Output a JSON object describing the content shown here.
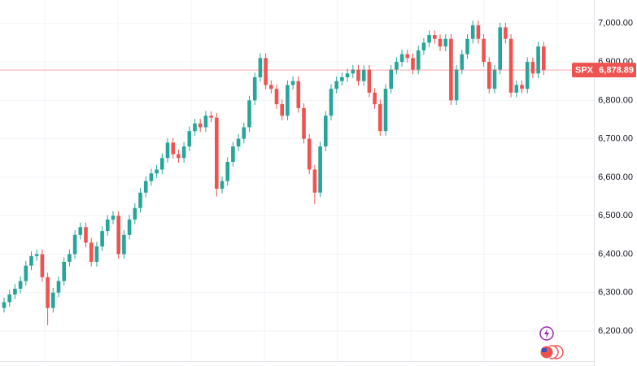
{
  "chart_data": {
    "type": "candlestick",
    "symbol": "SPX",
    "last_price": {
      "value": 6878.89,
      "label": "6,878.89"
    },
    "up_color": "#26a69a",
    "down_color": "#ef5350",
    "grid": true,
    "ylim": [
      6109,
      7061
    ],
    "yticks": [
      {
        "value": 6200,
        "label": "6,200.00"
      },
      {
        "value": 6300,
        "label": "6,300.00"
      },
      {
        "value": 6400,
        "label": "6,400.00"
      },
      {
        "value": 6500,
        "label": "6,500.00"
      },
      {
        "value": 6600,
        "label": "6,600.00"
      },
      {
        "value": 6700,
        "label": "6,700.00"
      },
      {
        "value": 6800,
        "label": "6,800.00"
      },
      {
        "value": 6900,
        "label": "6,900.00"
      },
      {
        "value": 7000,
        "label": "7,000.00"
      }
    ],
    "open": [
      6260,
      6275,
      6295,
      6310,
      6330,
      6370,
      6395,
      6400,
      6340,
      6260,
      6300,
      6330,
      6380,
      6400,
      6450,
      6470,
      6430,
      6380,
      6420,
      6460,
      6490,
      6500,
      6400,
      6450,
      6490,
      6520,
      6560,
      6590,
      6610,
      6620,
      6650,
      6690,
      6660,
      6650,
      6680,
      6720,
      6740,
      6730,
      6760,
      6755,
      6570,
      6590,
      6640,
      6680,
      6700,
      6730,
      6800,
      6860,
      6910,
      6840,
      6830,
      6790,
      6760,
      6840,
      6850,
      6780,
      6700,
      6620,
      6560,
      6680,
      6760,
      6830,
      6850,
      6860,
      6870,
      6880,
      6850,
      6880,
      6820,
      6790,
      6720,
      6830,
      6880,
      6900,
      6920,
      6910,
      6880,
      6930,
      6950,
      6970,
      6960,
      6940,
      6960,
      6800,
      6880,
      6920,
      6960,
      6995,
      6960,
      6900,
      6830,
      6880,
      6990,
      6960,
      6820,
      6840,
      6830,
      6900,
      6870,
      6940
    ],
    "high": [
      6287,
      6307,
      6322,
      6342,
      6382,
      6407,
      6412,
      6412,
      6352,
      6312,
      6342,
      6392,
      6412,
      6462,
      6482,
      6482,
      6442,
      6432,
      6472,
      6502,
      6512,
      6512,
      6462,
      6502,
      6532,
      6572,
      6602,
      6622,
      6632,
      6662,
      6702,
      6702,
      6672,
      6692,
      6732,
      6752,
      6752,
      6772,
      6772,
      6767,
      6602,
      6652,
      6692,
      6712,
      6742,
      6812,
      6872,
      6922,
      6922,
      6852,
      6842,
      6802,
      6852,
      6862,
      6862,
      6792,
      6712,
      6632,
      6692,
      6772,
      6842,
      6862,
      6872,
      6882,
      6892,
      6892,
      6892,
      6892,
      6832,
      6802,
      6842,
      6892,
      6912,
      6932,
      6932,
      6922,
      6942,
      6962,
      6982,
      6982,
      6972,
      6972,
      6972,
      6892,
      6932,
      6972,
      7007,
      7007,
      6972,
      6912,
      6892,
      7002,
      7002,
      6972,
      6852,
      6852,
      6912,
      6912,
      6952,
      6952
    ],
    "low": [
      6248,
      6263,
      6283,
      6298,
      6318,
      6358,
      6383,
      6328,
      6215,
      6248,
      6288,
      6318,
      6368,
      6388,
      6438,
      6418,
      6368,
      6368,
      6408,
      6448,
      6478,
      6388,
      6388,
      6438,
      6478,
      6508,
      6548,
      6578,
      6598,
      6608,
      6638,
      6648,
      6638,
      6638,
      6668,
      6708,
      6718,
      6718,
      6743,
      6550,
      6558,
      6578,
      6628,
      6668,
      6688,
      6718,
      6788,
      6848,
      6828,
      6818,
      6778,
      6748,
      6748,
      6828,
      6768,
      6688,
      6608,
      6530,
      6548,
      6668,
      6748,
      6818,
      6838,
      6848,
      6858,
      6838,
      6838,
      6808,
      6778,
      6708,
      6708,
      6818,
      6868,
      6888,
      6898,
      6868,
      6868,
      6918,
      6938,
      6948,
      6928,
      6928,
      6788,
      6788,
      6868,
      6908,
      6948,
      6948,
      6888,
      6818,
      6818,
      6868,
      6948,
      6808,
      6808,
      6818,
      6818,
      6858,
      6858,
      6866
    ],
    "close": [
      6275,
      6295,
      6310,
      6330,
      6370,
      6395,
      6400,
      6340,
      6260,
      6300,
      6330,
      6380,
      6400,
      6450,
      6470,
      6430,
      6380,
      6420,
      6460,
      6490,
      6500,
      6400,
      6450,
      6490,
      6520,
      6560,
      6590,
      6610,
      6620,
      6650,
      6690,
      6660,
      6650,
      6680,
      6720,
      6740,
      6730,
      6760,
      6755,
      6570,
      6590,
      6640,
      6680,
      6700,
      6730,
      6800,
      6860,
      6910,
      6840,
      6830,
      6790,
      6760,
      6840,
      6850,
      6780,
      6700,
      6620,
      6560,
      6680,
      6760,
      6830,
      6850,
      6860,
      6870,
      6880,
      6850,
      6880,
      6820,
      6790,
      6720,
      6830,
      6880,
      6900,
      6920,
      6910,
      6880,
      6930,
      6950,
      6970,
      6960,
      6940,
      6960,
      6800,
      6880,
      6920,
      6960,
      6995,
      6960,
      6900,
      6830,
      6880,
      6990,
      6960,
      6820,
      6840,
      6830,
      6900,
      6870,
      6940,
      6878.89
    ]
  }
}
